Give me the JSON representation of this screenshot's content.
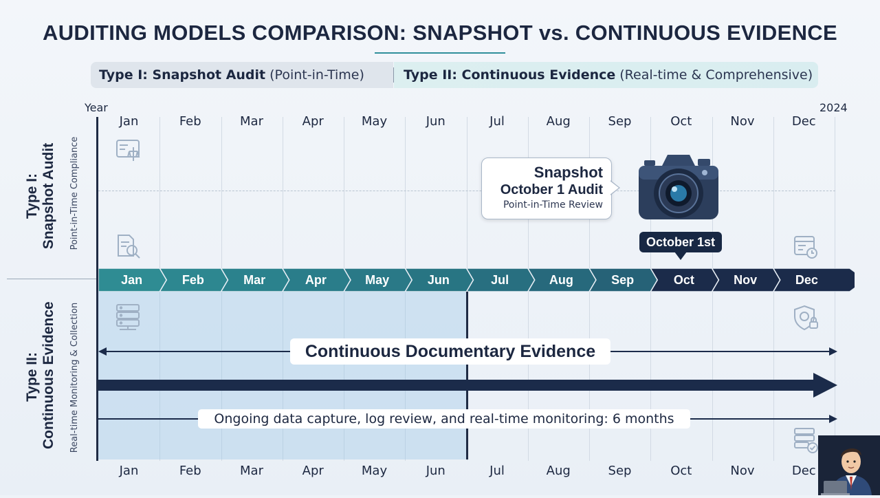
{
  "title": "AUDITING MODELS COMPARISON: SNAPSHOT vs. CONTINUOUS EVIDENCE",
  "legend": {
    "type1_bold": "Type I: Snapshot Audit",
    "type1_sub": "(Point-in-Time)",
    "type2_bold": "Type II: Continuous Evidence",
    "type2_sub": "(Real-time & Comprehensive)"
  },
  "corner_left": "Year",
  "corner_right": "2024",
  "months": [
    "Jan",
    "Feb",
    "Mar",
    "Apr",
    "May",
    "Jun",
    "Jul",
    "Aug",
    "Sep",
    "Oct",
    "Nov",
    "Dec"
  ],
  "type1": {
    "label_line1": "Type I:",
    "label_line2": "Snapshot Audit",
    "sublabel": "Point-in-Time Compliance"
  },
  "type2": {
    "label_line1": "Type II:",
    "label_line2": "Continuous Evidence",
    "sublabel": "Real-time Monitoring & Collection"
  },
  "callout": {
    "line1": "Snapshot",
    "line2": "October 1 Audit",
    "line3": "Point-in-Time Review"
  },
  "snapshot_date": "October 1st",
  "continuous_label": "Continuous Documentary Evidence",
  "ongoing_label": "Ongoing data capture, log review, and real-time monitoring: 6 months",
  "colors": {
    "teal": "#2a8a94",
    "navy": "#1b2b4a",
    "band": "#cfe2f2"
  },
  "icons": [
    "document-scale-icon",
    "document-search-icon",
    "calendar-clock-icon",
    "server-icon",
    "shield-lock-icon",
    "server-check-icon",
    "camera-icon"
  ]
}
